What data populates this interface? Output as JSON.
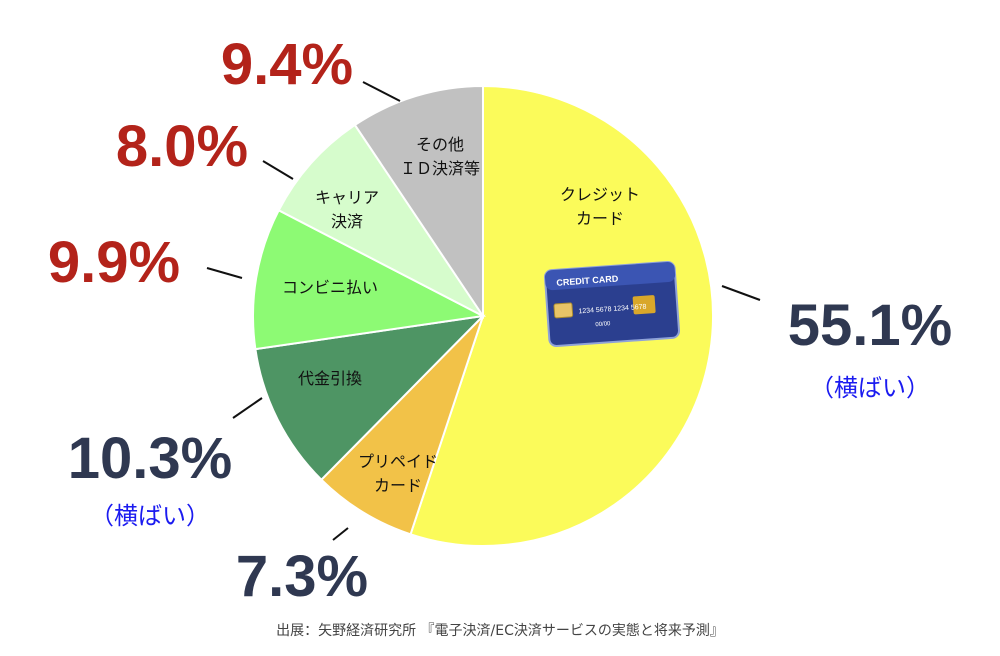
{
  "chart_data": {
    "type": "pie",
    "start": "12 o'clock, clockwise",
    "slices": [
      {
        "label": [
          "クレジット",
          "カード"
        ],
        "value": 55.1,
        "pct_text": "55.1%",
        "note": "（横ばい）",
        "color": "#fbfb5a",
        "pct_color": "#2f3851"
      },
      {
        "label": [
          "プリペイド",
          "カード"
        ],
        "value": 7.3,
        "pct_text": "7.3%",
        "note": "",
        "color": "#f2c248",
        "pct_color": "#2f3851"
      },
      {
        "label": [
          "代金引換"
        ],
        "value": 10.3,
        "pct_text": "10.3%",
        "note": "（横ばい）",
        "color": "#4e9564",
        "pct_color": "#2f3851"
      },
      {
        "label": [
          "コンビニ払い"
        ],
        "value": 9.9,
        "pct_text": "9.9%",
        "note": "",
        "color": "#8dfa74",
        "pct_color": "#b3231a"
      },
      {
        "label": [
          "キャリア",
          "決済"
        ],
        "value": 8.0,
        "pct_text": "8.0%",
        "note": "",
        "color": "#d6fccc",
        "pct_color": "#b3231a"
      },
      {
        "label": [
          "その他",
          "ＩＤ決済等"
        ],
        "value": 9.4,
        "pct_text": "9.4%",
        "note": "",
        "color": "#c1c1c1",
        "pct_color": "#b3231a"
      }
    ],
    "card_image": {
      "text_top": "CREDIT CARD",
      "text_num": "1234 5678 1234 5678",
      "text_exp": "00/00"
    }
  },
  "source": "出展：矢野経済研究所 『電子決済/EC決済サービスの実態と将来予測』"
}
